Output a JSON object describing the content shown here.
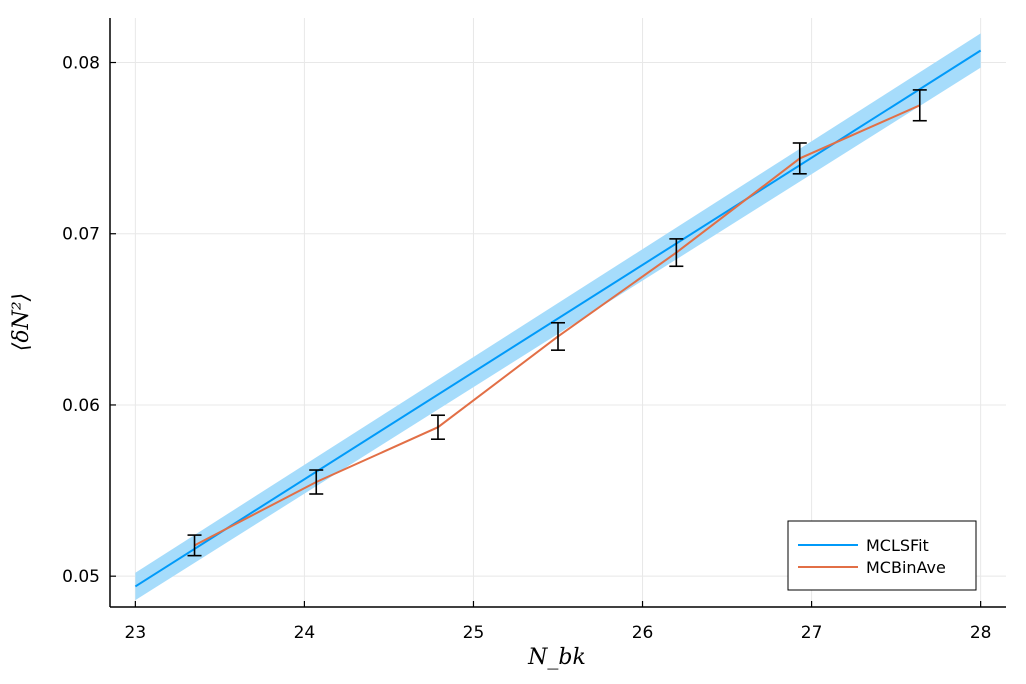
{
  "chart_data": {
    "type": "line",
    "xlabel": "N_bk",
    "ylabel": "⟨δN²⟩",
    "xlim": [
      22.85,
      28.15
    ],
    "ylim": [
      0.0482,
      0.0826
    ],
    "x_ticks": [
      23,
      24,
      25,
      26,
      27,
      28
    ],
    "y_ticks": [
      0.05,
      0.06,
      0.07,
      0.08
    ],
    "x_tick_labels": [
      "23",
      "24",
      "25",
      "26",
      "27",
      "28"
    ],
    "y_tick_labels": [
      "0.05",
      "0.06",
      "0.07",
      "0.08"
    ],
    "grid": true,
    "legend": {
      "position": "bottom-right"
    },
    "colors": {
      "fit": "#009af9",
      "band": "#a6dcfb",
      "binave": "#e26f46",
      "errorbar": "#000000"
    },
    "series": [
      {
        "name": "MCLSFit",
        "x": [
          23.0,
          28.0
        ],
        "y": [
          0.0494,
          0.0807
        ],
        "band_half_width": [
          0.0008,
          0.001
        ]
      },
      {
        "name": "MCBinAve",
        "x": [
          23.35,
          24.07,
          24.79,
          25.5,
          26.2,
          26.93,
          27.64
        ],
        "y": [
          0.0518,
          0.0555,
          0.0587,
          0.064,
          0.0689,
          0.0744,
          0.0775
        ],
        "yerr": [
          0.0006,
          0.0007,
          0.0007,
          0.0008,
          0.0008,
          0.0009,
          0.0009
        ]
      }
    ]
  }
}
